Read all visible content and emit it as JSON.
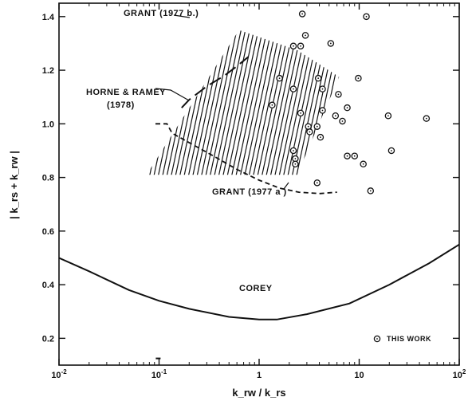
{
  "chart_data": {
    "type": "scatter",
    "xscale": "log",
    "xlim": [
      0.01,
      100
    ],
    "ylim": [
      0.1,
      1.45
    ],
    "xlabel": "k_rw / k_rs",
    "ylabel": "| k_rs + k_rw |",
    "x_ticks": [
      {
        "value": 0.01,
        "base": "10",
        "exp": "-2"
      },
      {
        "value": 0.1,
        "base": "10",
        "exp": "-1"
      },
      {
        "value": 1,
        "base": "1",
        "exp": ""
      },
      {
        "value": 10,
        "base": "10",
        "exp": ""
      },
      {
        "value": 100,
        "base": "10",
        "exp": "2"
      }
    ],
    "y_ticks": [
      {
        "value": 0.2,
        "label": "0.2"
      },
      {
        "value": 0.4,
        "label": "0.4"
      },
      {
        "value": 0.6,
        "label": "0.6"
      },
      {
        "value": 0.8,
        "label": "0.8"
      },
      {
        "value": 1.0,
        "label": "1.0"
      },
      {
        "value": 1.2,
        "label": "1.2"
      },
      {
        "value": 1.4,
        "label": "1.4"
      }
    ],
    "grid": false,
    "legend": {
      "position": "bottom-right",
      "label": "THIS WORK"
    },
    "annotations": {
      "grant_1977b": "GRANT (1977 b.)",
      "horne_line1": "HORNE & RAMEY",
      "horne_line2": "(1978)",
      "grant_1977a": "GRANT (1977 a )",
      "corey": "COREY"
    },
    "series": [
      {
        "name": "THIS WORK",
        "style": "circle-marker",
        "points": [
          [
            2.7,
            1.41
          ],
          [
            11.8,
            1.4
          ],
          [
            2.9,
            1.33
          ],
          [
            5.2,
            1.3
          ],
          [
            2.2,
            1.29
          ],
          [
            2.6,
            1.29
          ],
          [
            1.6,
            1.17
          ],
          [
            3.9,
            1.17
          ],
          [
            9.8,
            1.17
          ],
          [
            2.2,
            1.13
          ],
          [
            4.3,
            1.13
          ],
          [
            6.2,
            1.11
          ],
          [
            1.35,
            1.07
          ],
          [
            4.3,
            1.05
          ],
          [
            2.6,
            1.04
          ],
          [
            5.8,
            1.03
          ],
          [
            7.6,
            1.06
          ],
          [
            3.8,
            0.99
          ],
          [
            6.8,
            1.01
          ],
          [
            19.5,
            1.03
          ],
          [
            3.1,
            0.99
          ],
          [
            4.1,
            0.95
          ],
          [
            3.2,
            0.97
          ],
          [
            47.0,
            1.02
          ],
          [
            2.2,
            0.9
          ],
          [
            7.6,
            0.88
          ],
          [
            9.0,
            0.88
          ],
          [
            21.0,
            0.9
          ],
          [
            2.3,
            0.87
          ],
          [
            11.0,
            0.85
          ],
          [
            2.3,
            0.85
          ],
          [
            3.8,
            0.78
          ],
          [
            13.0,
            0.75
          ]
        ]
      },
      {
        "name": "GRANT (1977 b.)",
        "style": "hatched-region",
        "polygon": [
          [
            0.075,
            0.81
          ],
          [
            0.63,
            1.35
          ],
          [
            2.4,
            1.275
          ],
          [
            6.3,
            1.175
          ],
          [
            2.4,
            0.81
          ]
        ]
      },
      {
        "name": "HORNE & RAMEY",
        "style": "long-dash",
        "points": [
          [
            0.168,
            1.06
          ],
          [
            0.2,
            1.09
          ],
          [
            0.3,
            1.14
          ],
          [
            0.45,
            1.18
          ],
          [
            0.6,
            1.215
          ],
          [
            0.78,
            1.25
          ]
        ]
      },
      {
        "name": "GRANT (1977 a )",
        "style": "short-dash",
        "points": [
          [
            0.092,
            1.0
          ],
          [
            0.12,
            1.0
          ],
          [
            0.135,
            0.965
          ],
          [
            0.2,
            0.93
          ],
          [
            0.35,
            0.88
          ],
          [
            0.6,
            0.83
          ],
          [
            1.0,
            0.79
          ],
          [
            1.6,
            0.76
          ],
          [
            2.5,
            0.745
          ],
          [
            4.0,
            0.74
          ],
          [
            6.0,
            0.745
          ]
        ]
      },
      {
        "name": "COREY",
        "style": "solid",
        "points": [
          [
            0.01,
            0.5
          ],
          [
            0.02,
            0.45
          ],
          [
            0.05,
            0.38
          ],
          [
            0.1,
            0.34
          ],
          [
            0.2,
            0.31
          ],
          [
            0.5,
            0.28
          ],
          [
            1.0,
            0.27
          ],
          [
            1.5,
            0.27
          ],
          [
            3.0,
            0.29
          ],
          [
            8.0,
            0.33
          ],
          [
            20.0,
            0.4
          ],
          [
            50.0,
            0.48
          ],
          [
            100.0,
            0.55
          ]
        ]
      }
    ],
    "stray_mark": [
      0.098,
      0.125
    ]
  }
}
